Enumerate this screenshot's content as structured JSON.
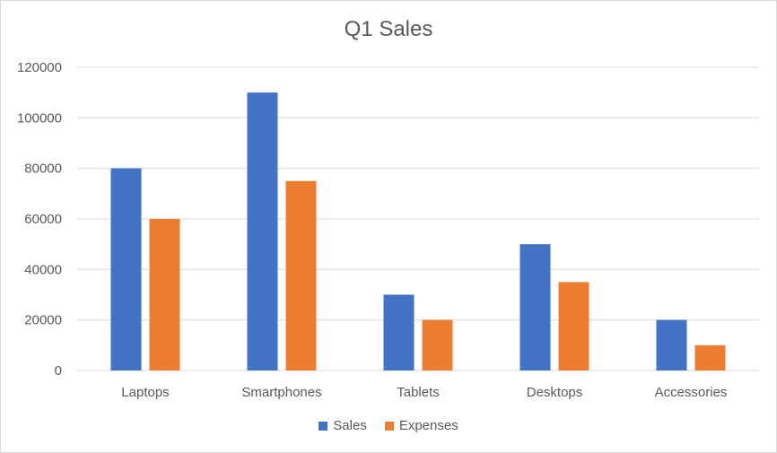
{
  "chart_data": {
    "type": "bar",
    "title": "Q1 Sales",
    "categories": [
      "Laptops",
      "Smartphones",
      "Tablets",
      "Desktops",
      "Accessories"
    ],
    "series": [
      {
        "name": "Sales",
        "values": [
          80000,
          110000,
          30000,
          50000,
          20000
        ],
        "color": "#4472C4"
      },
      {
        "name": "Expenses",
        "values": [
          60000,
          75000,
          20000,
          35000,
          10000
        ],
        "color": "#ED7D31"
      }
    ],
    "y_ticks": [
      "0",
      "20000",
      "40000",
      "60000",
      "80000",
      "100000",
      "120000"
    ],
    "ylim": [
      0,
      120000
    ],
    "grid": true,
    "legend_position": "bottom",
    "gridline_color": "#d9d9d9"
  }
}
